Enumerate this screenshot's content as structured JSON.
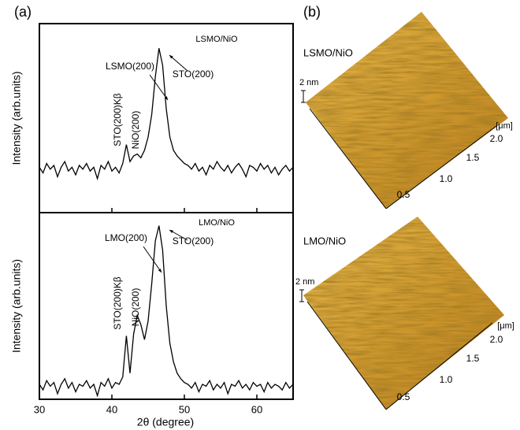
{
  "panel_labels": [
    "(a)",
    "(b)"
  ],
  "chart_data": [
    {
      "type": "line",
      "ylabel": "Intensity (arb.units)",
      "color": "#000000",
      "xlim": [
        30,
        65
      ],
      "ylim": [
        0,
        100
      ],
      "xticks": [
        30,
        40,
        50,
        60
      ],
      "annotations": [
        "LSMO/NiO",
        "LSMO(200)",
        "STO(200)",
        "STO(200)Kβ",
        "NiO(200)"
      ],
      "x": [
        30,
        30.5,
        31,
        31.5,
        32,
        32.5,
        33,
        33.5,
        34,
        34.5,
        35,
        35.5,
        36,
        36.5,
        37,
        37.5,
        38,
        38.5,
        39,
        39.5,
        40,
        40.5,
        41,
        41.5,
        42,
        42.5,
        43,
        43.5,
        44,
        44.5,
        45,
        45.5,
        46,
        46.5,
        47,
        47.5,
        48,
        48.5,
        49,
        49.5,
        50,
        50.5,
        51,
        51.5,
        52,
        52.5,
        53,
        53.5,
        54,
        54.5,
        55,
        55.5,
        56,
        56.5,
        57,
        57.5,
        58,
        58.5,
        59,
        59.5,
        60,
        60.5,
        61,
        61.5,
        62,
        62.5,
        63,
        63.5,
        64,
        64.5,
        65
      ],
      "values": [
        24,
        21,
        26,
        23,
        25,
        19,
        24,
        27,
        22,
        24,
        20,
        25,
        23,
        26,
        22,
        24,
        18,
        25,
        23,
        27,
        22,
        24,
        21,
        26,
        36,
        27,
        30,
        31,
        29,
        33,
        40,
        52,
        72,
        87,
        78,
        55,
        40,
        33,
        30,
        28,
        26,
        25,
        23,
        26,
        22,
        24,
        20,
        25,
        23,
        27,
        24,
        22,
        25,
        21,
        24,
        26,
        23,
        19,
        25,
        24,
        22,
        26,
        23,
        25,
        21,
        24,
        20,
        23,
        25,
        22,
        24
      ]
    },
    {
      "type": "line",
      "xlabel": "2θ (degree)",
      "ylabel": "Intensity (arb.units)",
      "color": "#000000",
      "xlim": [
        30,
        65
      ],
      "ylim": [
        0,
        100
      ],
      "xticks": [
        30,
        40,
        50,
        60
      ],
      "annotations": [
        "LMO/NiO",
        "LMO(200)",
        "STO(200)",
        "STO(200)Kβ",
        "NiO(200)"
      ],
      "x": [
        30,
        30.5,
        31,
        31.5,
        32,
        32.5,
        33,
        33.5,
        34,
        34.5,
        35,
        35.5,
        36,
        36.5,
        37,
        37.5,
        38,
        38.5,
        39,
        39.5,
        40,
        40.5,
        41,
        41.5,
        42,
        42.5,
        43,
        43.5,
        44,
        44.5,
        45,
        45.5,
        46,
        46.5,
        47,
        47.5,
        48,
        48.5,
        49,
        49.5,
        50,
        50.5,
        51,
        51.5,
        52,
        52.5,
        53,
        53.5,
        54,
        54.5,
        55,
        55.5,
        56,
        56.5,
        57,
        57.5,
        58,
        58.5,
        59,
        59.5,
        60,
        60.5,
        61,
        61.5,
        62,
        62.5,
        63,
        63.5,
        64,
        64.5,
        65
      ],
      "values": [
        8,
        5,
        10,
        7,
        9,
        3,
        8,
        11,
        6,
        9,
        4,
        8,
        7,
        10,
        6,
        8,
        2,
        9,
        7,
        11,
        6,
        9,
        8,
        12,
        34,
        14,
        35,
        45,
        40,
        32,
        42,
        62,
        85,
        93,
        80,
        50,
        30,
        20,
        14,
        11,
        9,
        8,
        6,
        9,
        4,
        8,
        7,
        10,
        5,
        8,
        6,
        9,
        3,
        8,
        7,
        10,
        6,
        8,
        5,
        9,
        7,
        8,
        4,
        9,
        6,
        8,
        7,
        5,
        9,
        6,
        8
      ]
    }
  ],
  "afm": [
    {
      "label": "LSMO/NiO",
      "height_scale": "2 nm",
      "unit": "[μm]",
      "ticks": [
        "0.5",
        "1.0",
        "1.5",
        "2.0"
      ]
    },
    {
      "label": "LMO/NiO",
      "height_scale": "2 nm",
      "unit": "[μm]",
      "ticks": [
        "0.5",
        "1.0",
        "1.5",
        "2.0"
      ]
    }
  ]
}
